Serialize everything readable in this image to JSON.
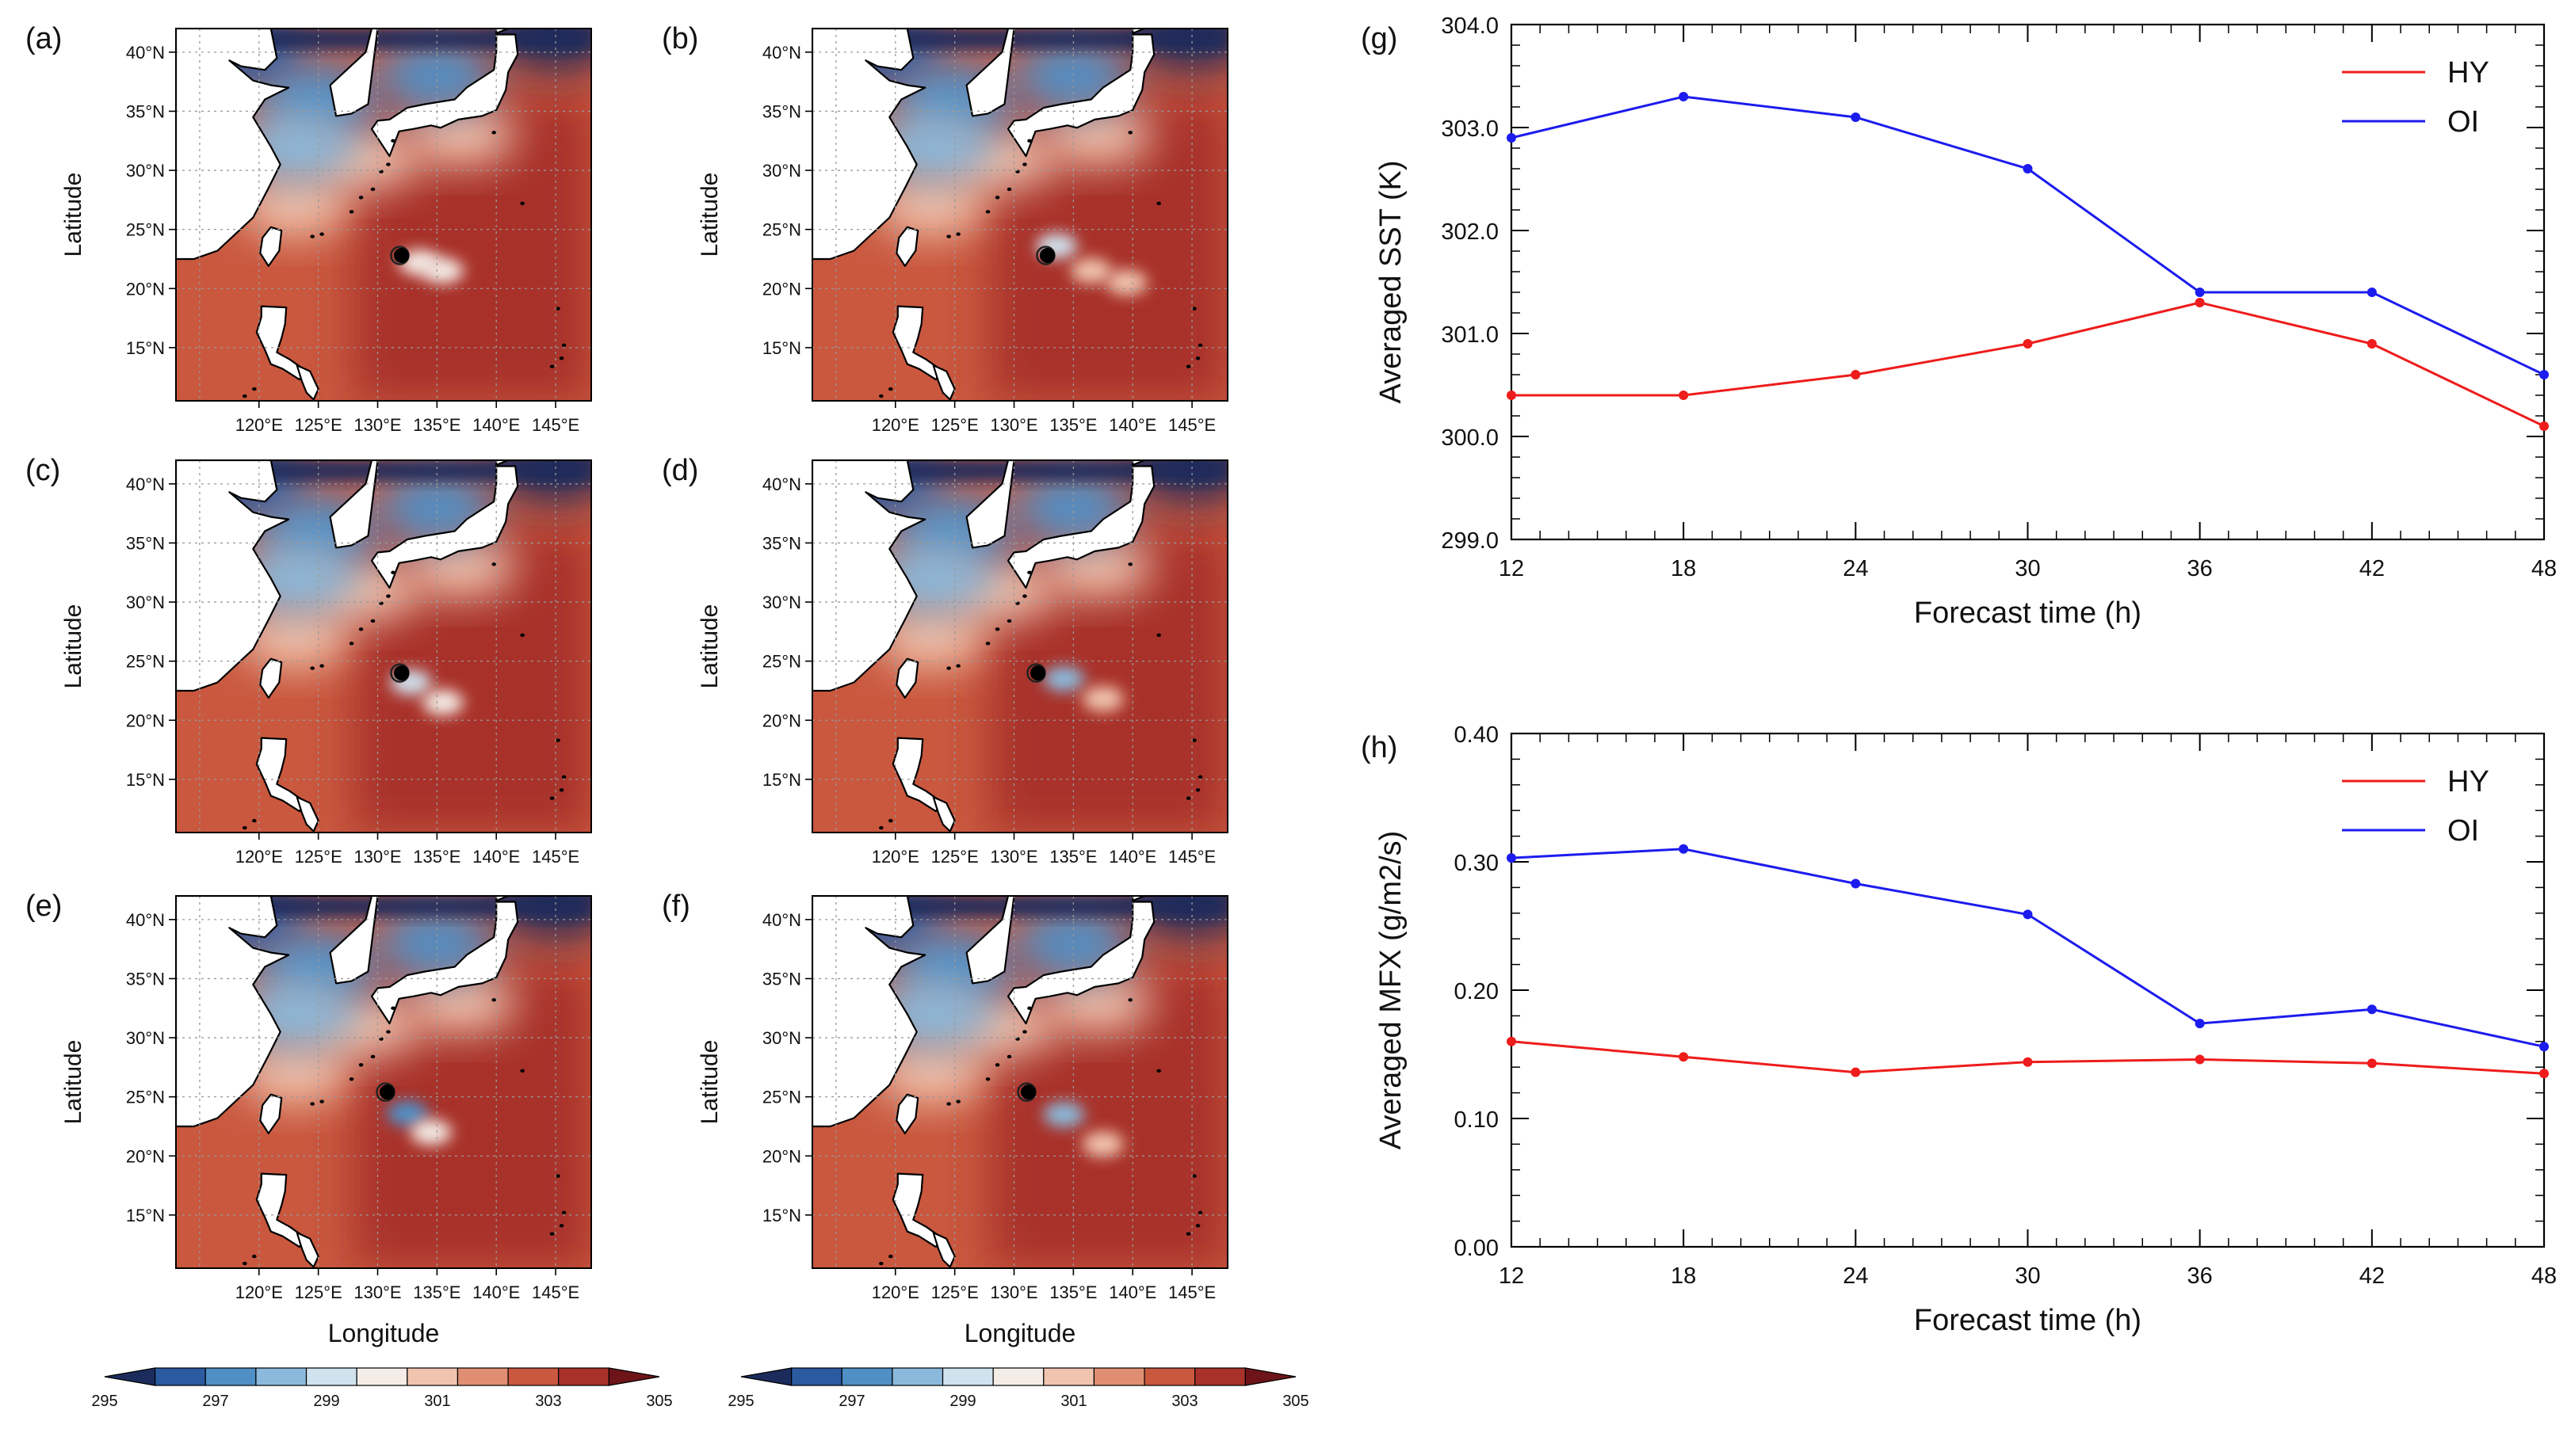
{
  "maps": {
    "panels": [
      {
        "tag": "(a)",
        "typhoon_center": {
          "lon": 132.0,
          "lat": 22.8
        },
        "cold_wake": [
          {
            "lon": 133.5,
            "lat": 22.2,
            "sst": 300.0
          },
          {
            "lon": 135.5,
            "lat": 21.5,
            "sst": 299.8
          }
        ],
        "show_ylabel": true
      },
      {
        "tag": "(b)",
        "typhoon_center": {
          "lon": 132.8,
          "lat": 22.8
        },
        "cold_wake": [
          {
            "lon": 133.6,
            "lat": 23.6,
            "sst": 299.0
          },
          {
            "lon": 136.5,
            "lat": 21.5,
            "sst": 300.8
          },
          {
            "lon": 139.5,
            "lat": 20.5,
            "sst": 301.2
          }
        ],
        "show_ylabel": true
      },
      {
        "tag": "(c)",
        "typhoon_center": {
          "lon": 132.0,
          "lat": 24.0
        },
        "cold_wake": [
          {
            "lon": 132.8,
            "lat": 23.2,
            "sst": 299.2
          },
          {
            "lon": 135.5,
            "lat": 21.5,
            "sst": 300.0
          }
        ],
        "show_ylabel": true
      },
      {
        "tag": "(d)",
        "typhoon_center": {
          "lon": 132.0,
          "lat": 24.0
        },
        "cold_wake": [
          {
            "lon": 134.2,
            "lat": 23.5,
            "sst": 298.0
          },
          {
            "lon": 137.5,
            "lat": 21.8,
            "sst": 300.5
          }
        ],
        "show_ylabel": true
      },
      {
        "tag": "(e)",
        "typhoon_center": {
          "lon": 130.8,
          "lat": 25.4
        },
        "cold_wake": [
          {
            "lon": 132.5,
            "lat": 23.6,
            "sst": 297.5
          },
          {
            "lon": 134.5,
            "lat": 22.0,
            "sst": 300.0
          }
        ],
        "show_ylabel": true
      },
      {
        "tag": "(f)",
        "typhoon_center": {
          "lon": 131.2,
          "lat": 25.4
        },
        "cold_wake": [
          {
            "lon": 134.2,
            "lat": 23.5,
            "sst": 298.0
          },
          {
            "lon": 137.5,
            "lat": 21.0,
            "sst": 300.8
          }
        ],
        "show_ylabel": true
      }
    ],
    "ylabel": "Latitude",
    "xlabel": "Longitude",
    "lon_ticks": [
      "120°E",
      "125°E",
      "130°E",
      "135°E",
      "140°E",
      "145°E"
    ],
    "lat_ticks": [
      "40°N",
      "35°N",
      "30°N",
      "25°N",
      "20°N",
      "15°N"
    ],
    "lon_range": [
      113,
      148
    ],
    "lat_range": [
      10.5,
      42
    ],
    "colorbar": {
      "labels": [
        "295",
        "297",
        "299",
        "301",
        "303",
        "305"
      ],
      "range": [
        295,
        305
      ],
      "colors": [
        "#1b2c5c",
        "#2a5aa0",
        "#4f8fc6",
        "#8ab9db",
        "#cfe2ee",
        "#f4ece6",
        "#f0c4ae",
        "#e08f72",
        "#c9583f",
        "#a8322a",
        "#6e1419"
      ]
    },
    "sst_field": {
      "ocean_base": 302.6,
      "grid_spacing_deg": 5,
      "warm_zone": {
        "lon": [
          128,
          148
        ],
        "lat": [
          10.5,
          36
        ],
        "sst": 303.5
      },
      "kuroshio": [
        {
          "lon": 123,
          "lat": 27,
          "sst": 301
        },
        {
          "lon": 129,
          "lat": 31,
          "sst": 300.5
        },
        {
          "lon": 137,
          "lat": 33,
          "sst": 300.8
        }
      ],
      "cold_north": [
        {
          "lon": 119,
          "lat": 40,
          "sst": 296
        },
        {
          "lon": 125,
          "lat": 36,
          "sst": 297
        },
        {
          "lon": 123,
          "lat": 32,
          "sst": 298.6
        },
        {
          "lon": 135,
          "lat": 38,
          "sst": 297
        },
        {
          "lon": 145,
          "lat": 41.5,
          "sst": 295
        }
      ]
    }
  },
  "chart_data": [
    {
      "tag": "(g)",
      "type": "line",
      "x": [
        12,
        18,
        24,
        30,
        36,
        42,
        48
      ],
      "series": [
        {
          "name": "HY",
          "color": "#ee1c1c",
          "values": [
            300.4,
            300.4,
            300.6,
            300.9,
            301.3,
            300.9,
            300.1
          ]
        },
        {
          "name": "OI",
          "color": "#1c1cee",
          "values": [
            302.9,
            303.3,
            303.1,
            302.6,
            301.4,
            301.4,
            300.6
          ]
        }
      ],
      "xlabel": "Forecast time (h)",
      "ylabel": "Averaged SST (K)",
      "ylim": [
        299.0,
        304.0
      ],
      "yticks": [
        "299.0",
        "300.0",
        "301.0",
        "302.0",
        "303.0",
        "304.0"
      ],
      "xticks": [
        "12",
        "18",
        "24",
        "30",
        "36",
        "42",
        "48"
      ],
      "legend": "top-right",
      "grid": false
    },
    {
      "tag": "(h)",
      "type": "line",
      "x": [
        12,
        18,
        24,
        30,
        36,
        42,
        48
      ],
      "series": [
        {
          "name": "HY",
          "color": "#ee1c1c",
          "values": [
            0.16,
            0.148,
            0.136,
            0.144,
            0.146,
            0.143,
            0.135
          ]
        },
        {
          "name": "OI",
          "color": "#1c1cee",
          "values": [
            0.303,
            0.31,
            0.283,
            0.259,
            0.174,
            0.185,
            0.156
          ]
        }
      ],
      "xlabel": "Forecast time (h)",
      "ylabel": "Averaged MFX (g/m2/s)",
      "ylim": [
        0.0,
        0.4
      ],
      "yticks": [
        "0.00",
        "0.10",
        "0.20",
        "0.30",
        "0.40"
      ],
      "xticks": [
        "12",
        "18",
        "24",
        "30",
        "36",
        "42",
        "48"
      ],
      "legend": "top-right",
      "grid": false
    }
  ]
}
